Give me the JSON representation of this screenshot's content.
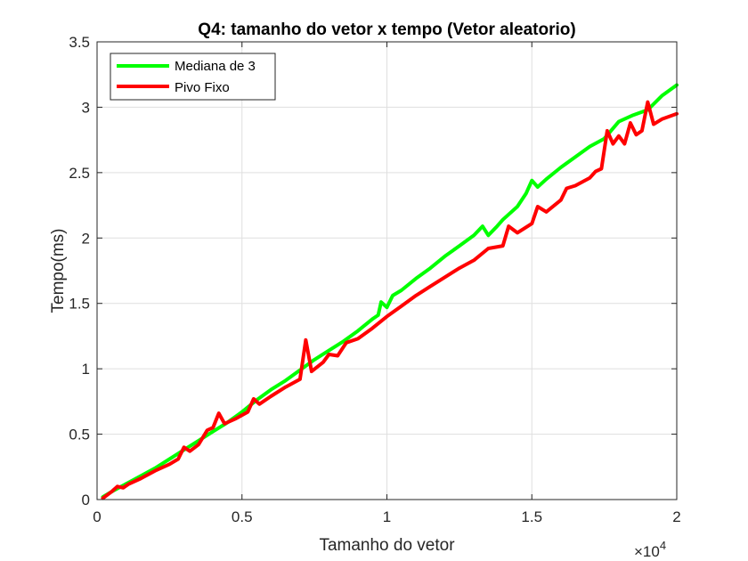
{
  "chart_data": {
    "type": "line",
    "title": "Q4: tamanho do vetor x tempo (Vetor aleatorio)",
    "xlabel": "Tamanho do vetor",
    "ylabel": "Tempo(ms)",
    "x_exponent_label": "×10",
    "x_exponent_power": "4",
    "xlim": [
      0,
      20000
    ],
    "ylim": [
      0,
      3.5
    ],
    "x_ticks": [
      0,
      5000,
      10000,
      15000,
      20000
    ],
    "x_tick_labels": [
      "0",
      "0.5",
      "1",
      "1.5",
      "2"
    ],
    "y_ticks": [
      0,
      0.5,
      1,
      1.5,
      2,
      2.5,
      3,
      3.5
    ],
    "y_tick_labels": [
      "0",
      "0.5",
      "1",
      "1.5",
      "2",
      "2.5",
      "3",
      "3.5"
    ],
    "grid": true,
    "legend_position": "top-left",
    "series": [
      {
        "name": "Mediana de 3",
        "color": "#00ff00",
        "points": [
          [
            200,
            0.02
          ],
          [
            500,
            0.06
          ],
          [
            1000,
            0.12
          ],
          [
            1500,
            0.18
          ],
          [
            2000,
            0.24
          ],
          [
            2500,
            0.31
          ],
          [
            3000,
            0.38
          ],
          [
            3500,
            0.45
          ],
          [
            4000,
            0.52
          ],
          [
            4500,
            0.59
          ],
          [
            5000,
            0.67
          ],
          [
            5500,
            0.76
          ],
          [
            6000,
            0.84
          ],
          [
            6500,
            0.91
          ],
          [
            7000,
            0.99
          ],
          [
            7500,
            1.07
          ],
          [
            8000,
            1.14
          ],
          [
            8500,
            1.21
          ],
          [
            9000,
            1.29
          ],
          [
            9500,
            1.38
          ],
          [
            9700,
            1.41
          ],
          [
            9800,
            1.51
          ],
          [
            10000,
            1.47
          ],
          [
            10200,
            1.56
          ],
          [
            10500,
            1.6
          ],
          [
            11000,
            1.69
          ],
          [
            11500,
            1.77
          ],
          [
            12000,
            1.86
          ],
          [
            12500,
            1.94
          ],
          [
            13000,
            2.02
          ],
          [
            13300,
            2.09
          ],
          [
            13500,
            2.02
          ],
          [
            13800,
            2.09
          ],
          [
            14000,
            2.14
          ],
          [
            14500,
            2.24
          ],
          [
            14800,
            2.34
          ],
          [
            15000,
            2.44
          ],
          [
            15200,
            2.39
          ],
          [
            15500,
            2.45
          ],
          [
            16000,
            2.54
          ],
          [
            16500,
            2.62
          ],
          [
            17000,
            2.7
          ],
          [
            17500,
            2.76
          ],
          [
            18000,
            2.89
          ],
          [
            18500,
            2.94
          ],
          [
            19000,
            2.98
          ],
          [
            19500,
            3.09
          ],
          [
            20000,
            3.17
          ]
        ]
      },
      {
        "name": "Pivo Fixo",
        "color": "#ff0000",
        "points": [
          [
            200,
            0.01
          ],
          [
            500,
            0.06
          ],
          [
            700,
            0.1
          ],
          [
            900,
            0.09
          ],
          [
            1100,
            0.12
          ],
          [
            1500,
            0.16
          ],
          [
            2000,
            0.22
          ],
          [
            2500,
            0.27
          ],
          [
            2800,
            0.31
          ],
          [
            3000,
            0.4
          ],
          [
            3200,
            0.37
          ],
          [
            3500,
            0.42
          ],
          [
            3800,
            0.53
          ],
          [
            4000,
            0.55
          ],
          [
            4200,
            0.66
          ],
          [
            4400,
            0.58
          ],
          [
            4800,
            0.62
          ],
          [
            5200,
            0.67
          ],
          [
            5400,
            0.77
          ],
          [
            5600,
            0.73
          ],
          [
            6000,
            0.79
          ],
          [
            6500,
            0.86
          ],
          [
            7000,
            0.92
          ],
          [
            7200,
            1.22
          ],
          [
            7400,
            0.98
          ],
          [
            7800,
            1.05
          ],
          [
            8000,
            1.11
          ],
          [
            8300,
            1.1
          ],
          [
            8600,
            1.2
          ],
          [
            9000,
            1.23
          ],
          [
            9500,
            1.31
          ],
          [
            10000,
            1.4
          ],
          [
            10500,
            1.48
          ],
          [
            11000,
            1.56
          ],
          [
            11500,
            1.63
          ],
          [
            12000,
            1.7
          ],
          [
            12500,
            1.77
          ],
          [
            13000,
            1.83
          ],
          [
            13500,
            1.92
          ],
          [
            14000,
            1.94
          ],
          [
            14200,
            2.09
          ],
          [
            14500,
            2.04
          ],
          [
            15000,
            2.11
          ],
          [
            15200,
            2.24
          ],
          [
            15500,
            2.2
          ],
          [
            16000,
            2.29
          ],
          [
            16200,
            2.38
          ],
          [
            16500,
            2.4
          ],
          [
            17000,
            2.46
          ],
          [
            17200,
            2.51
          ],
          [
            17400,
            2.53
          ],
          [
            17600,
            2.82
          ],
          [
            17800,
            2.72
          ],
          [
            18000,
            2.78
          ],
          [
            18200,
            2.72
          ],
          [
            18400,
            2.88
          ],
          [
            18600,
            2.79
          ],
          [
            18800,
            2.82
          ],
          [
            19000,
            3.04
          ],
          [
            19200,
            2.87
          ],
          [
            19500,
            2.91
          ],
          [
            20000,
            2.95
          ]
        ]
      }
    ]
  }
}
